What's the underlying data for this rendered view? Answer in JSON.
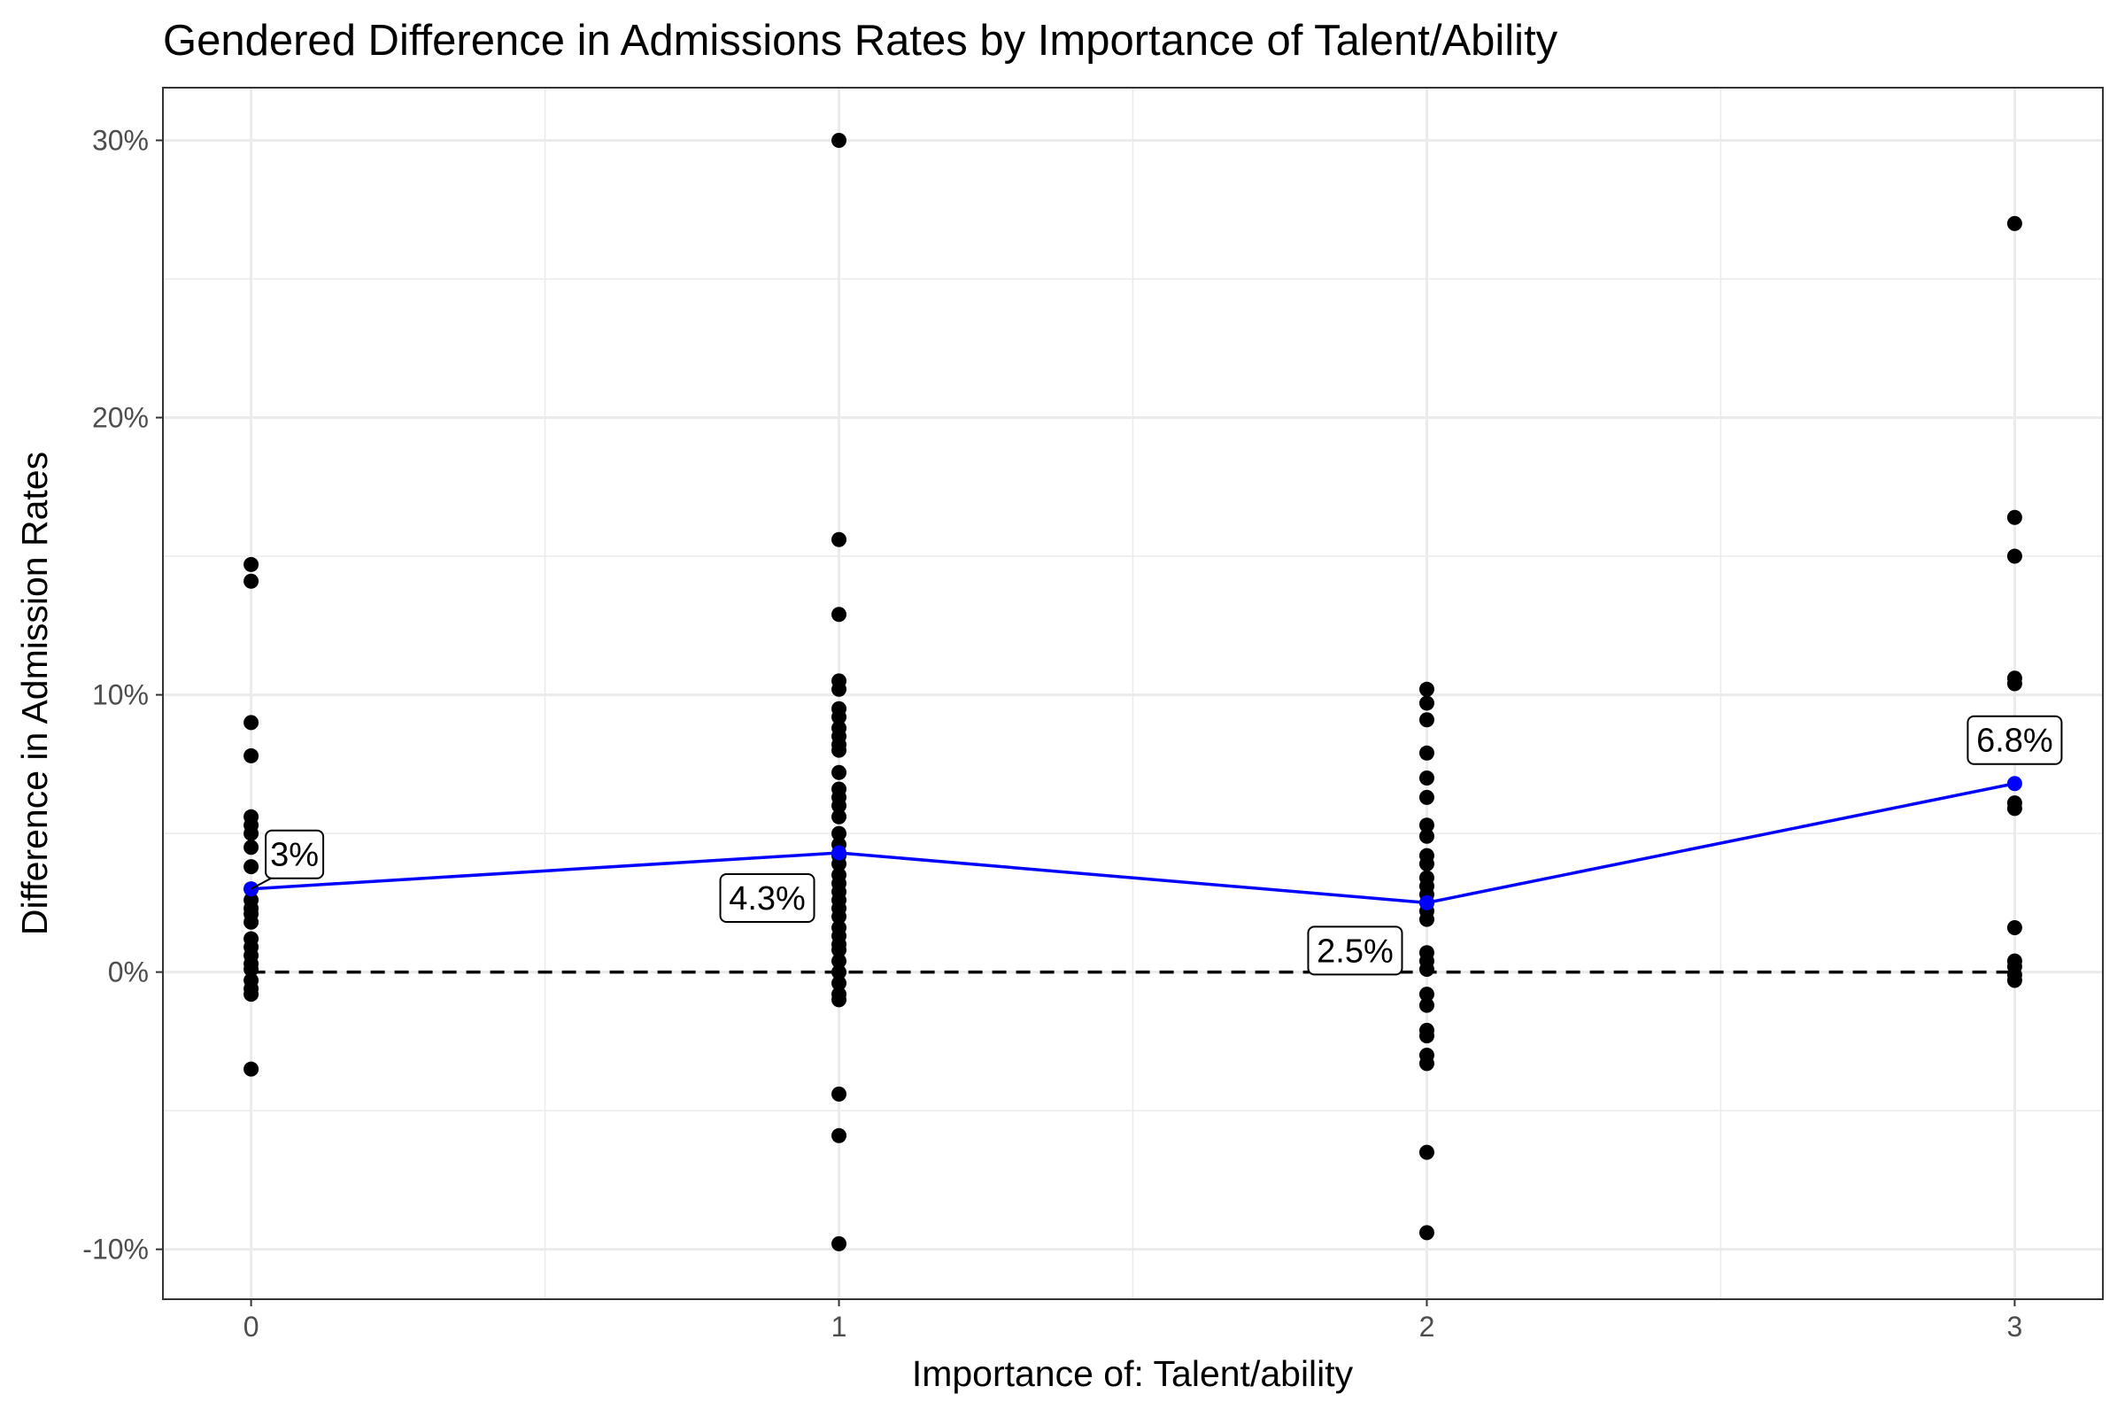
{
  "chart_data": {
    "type": "scatter",
    "title": "Gendered Difference in Admissions Rates by Importance of Talent/Ability",
    "xlabel": "Importance of: Talent/ability",
    "ylabel": "Difference in Admission Rates",
    "x_ticks": [
      "0",
      "1",
      "2",
      "3"
    ],
    "y_ticks": [
      {
        "value": -10,
        "label": "-10%"
      },
      {
        "value": 0,
        "label": "0%"
      },
      {
        "value": 10,
        "label": "10%"
      },
      {
        "value": 20,
        "label": "20%"
      },
      {
        "value": 30,
        "label": "30%"
      }
    ],
    "xlim": [
      -0.15,
      3.15
    ],
    "ylim": [
      -11.8,
      31.9
    ],
    "grid": true,
    "reference_line": {
      "y": 0,
      "style": "dashed",
      "color": "#000000"
    },
    "point_color": "#000000",
    "mean_color": "#0000ff",
    "points": [
      {
        "x": 0,
        "y": [
          14.7,
          14.1,
          9.0,
          7.8,
          5.6,
          5.3,
          5.0,
          4.5,
          3.8,
          3.0,
          2.6,
          2.3,
          2.1,
          1.8,
          1.2,
          0.9,
          0.6,
          0.3,
          0.1,
          -0.3,
          -0.6,
          -0.8,
          -3.5
        ]
      },
      {
        "x": 1,
        "y": [
          30.0,
          15.6,
          12.9,
          10.5,
          10.2,
          9.5,
          9.2,
          8.8,
          8.5,
          8.2,
          8.0,
          7.2,
          6.6,
          6.3,
          6.0,
          5.6,
          5.0,
          4.6,
          4.2,
          3.9,
          3.5,
          3.2,
          2.9,
          2.6,
          2.3,
          2.0,
          1.6,
          1.3,
          1.0,
          0.8,
          0.4,
          0.0,
          -0.4,
          -0.8,
          -1.0,
          -4.4,
          -5.9,
          -9.8
        ]
      },
      {
        "x": 2,
        "y": [
          10.2,
          9.7,
          9.1,
          7.9,
          7.0,
          6.3,
          5.3,
          4.9,
          4.2,
          3.9,
          3.4,
          3.1,
          2.8,
          2.5,
          2.2,
          1.9,
          0.7,
          0.4,
          0.1,
          -0.8,
          -1.2,
          -2.1,
          -2.3,
          -3.0,
          -3.3,
          -6.5,
          -9.4
        ]
      },
      {
        "x": 3,
        "y": [
          27.0,
          16.4,
          15.0,
          10.6,
          10.4,
          6.1,
          5.9,
          1.6,
          0.4,
          0.2,
          -0.1,
          -0.3
        ]
      }
    ],
    "means": [
      {
        "x": 0,
        "y": 3.0,
        "label": "3%"
      },
      {
        "x": 1,
        "y": 4.3,
        "label": "4.3%"
      },
      {
        "x": 2,
        "y": 2.5,
        "label": "2.5%"
      },
      {
        "x": 3,
        "y": 6.8,
        "label": "6.8%"
      }
    ]
  }
}
